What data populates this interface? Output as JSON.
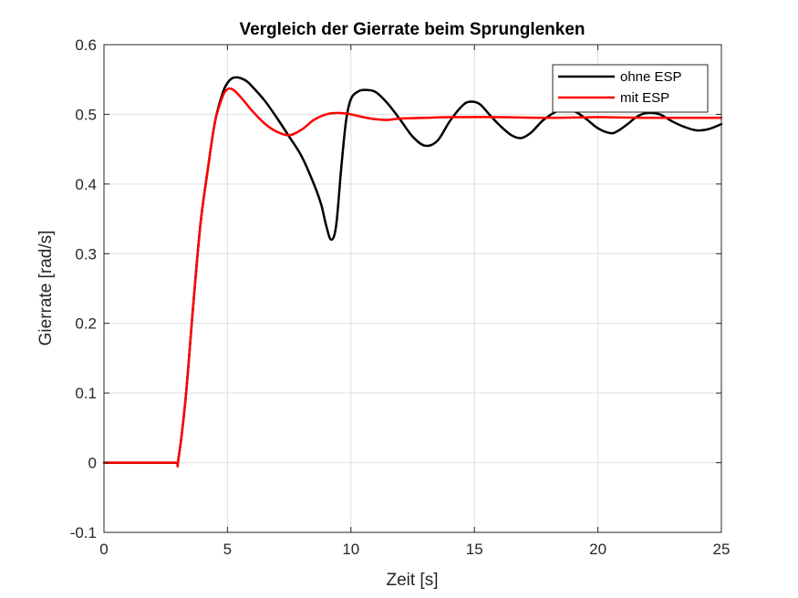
{
  "chart_data": {
    "type": "line",
    "title": "Vergleich der Gierrate beim Sprunglenken",
    "xlabel": "Zeit [s]",
    "ylabel": "Gierrate [rad/s]",
    "xlim": [
      0,
      25
    ],
    "ylim": [
      -0.1,
      0.6
    ],
    "xticks": [
      0,
      5,
      10,
      15,
      20,
      25
    ],
    "yticks": [
      -0.1,
      0,
      0.1,
      0.2,
      0.3,
      0.4,
      0.5,
      0.6
    ],
    "xtick_labels": [
      "0",
      "5",
      "10",
      "15",
      "20",
      "25"
    ],
    "ytick_labels": [
      "-0.1",
      "0",
      "0.1",
      "0.2",
      "0.3",
      "0.4",
      "0.5",
      "0.6"
    ],
    "grid": true,
    "legend_position": "top-right",
    "series": [
      {
        "name": "ohne ESP",
        "color": "#000000",
        "x": [
          0,
          1,
          2,
          2.9,
          3.0,
          3.3,
          3.6,
          3.9,
          4.2,
          4.5,
          4.8,
          5.0,
          5.2,
          5.4,
          5.6,
          5.8,
          6.0,
          6.5,
          7.0,
          7.5,
          8.0,
          8.5,
          8.8,
          9.0,
          9.2,
          9.4,
          9.6,
          9.8,
          10.0,
          10.3,
          10.6,
          11.0,
          11.5,
          12.0,
          12.5,
          13.0,
          13.5,
          14.0,
          14.5,
          14.8,
          15.2,
          15.6,
          16.0,
          16.5,
          16.9,
          17.3,
          17.8,
          18.4,
          19.0,
          19.5,
          20.0,
          20.5,
          20.8,
          21.2,
          21.6,
          22.0,
          22.5,
          23.0,
          23.5,
          24.0,
          24.5,
          25.0
        ],
        "y": [
          0,
          0,
          0,
          0,
          0.002,
          0.09,
          0.22,
          0.34,
          0.42,
          0.49,
          0.53,
          0.545,
          0.552,
          0.553,
          0.551,
          0.547,
          0.54,
          0.52,
          0.495,
          0.468,
          0.44,
          0.4,
          0.37,
          0.34,
          0.32,
          0.34,
          0.42,
          0.49,
          0.522,
          0.533,
          0.535,
          0.532,
          0.515,
          0.492,
          0.468,
          0.455,
          0.462,
          0.49,
          0.512,
          0.518,
          0.515,
          0.5,
          0.485,
          0.47,
          0.466,
          0.474,
          0.492,
          0.505,
          0.505,
          0.494,
          0.48,
          0.473,
          0.476,
          0.486,
          0.497,
          0.502,
          0.5,
          0.49,
          0.482,
          0.477,
          0.479,
          0.486
        ]
      },
      {
        "name": "mit ESP",
        "color": "#ff0000",
        "x": [
          0,
          1,
          2,
          2.9,
          3.0,
          3.3,
          3.6,
          3.9,
          4.2,
          4.5,
          4.8,
          5.0,
          5.2,
          5.4,
          5.7,
          6.0,
          6.5,
          7.0,
          7.5,
          8.0,
          8.5,
          9.0,
          9.5,
          10.0,
          10.5,
          11.0,
          11.5,
          12.0,
          13.0,
          14.0,
          16.0,
          18.0,
          20.0,
          22.0,
          25.0
        ],
        "y": [
          0,
          0,
          0,
          0,
          0.002,
          0.09,
          0.22,
          0.34,
          0.42,
          0.49,
          0.525,
          0.536,
          0.536,
          0.53,
          0.518,
          0.505,
          0.487,
          0.475,
          0.47,
          0.478,
          0.492,
          0.5,
          0.502,
          0.5,
          0.496,
          0.493,
          0.492,
          0.494,
          0.495,
          0.496,
          0.496,
          0.495,
          0.496,
          0.495,
          0.495
        ]
      }
    ]
  }
}
